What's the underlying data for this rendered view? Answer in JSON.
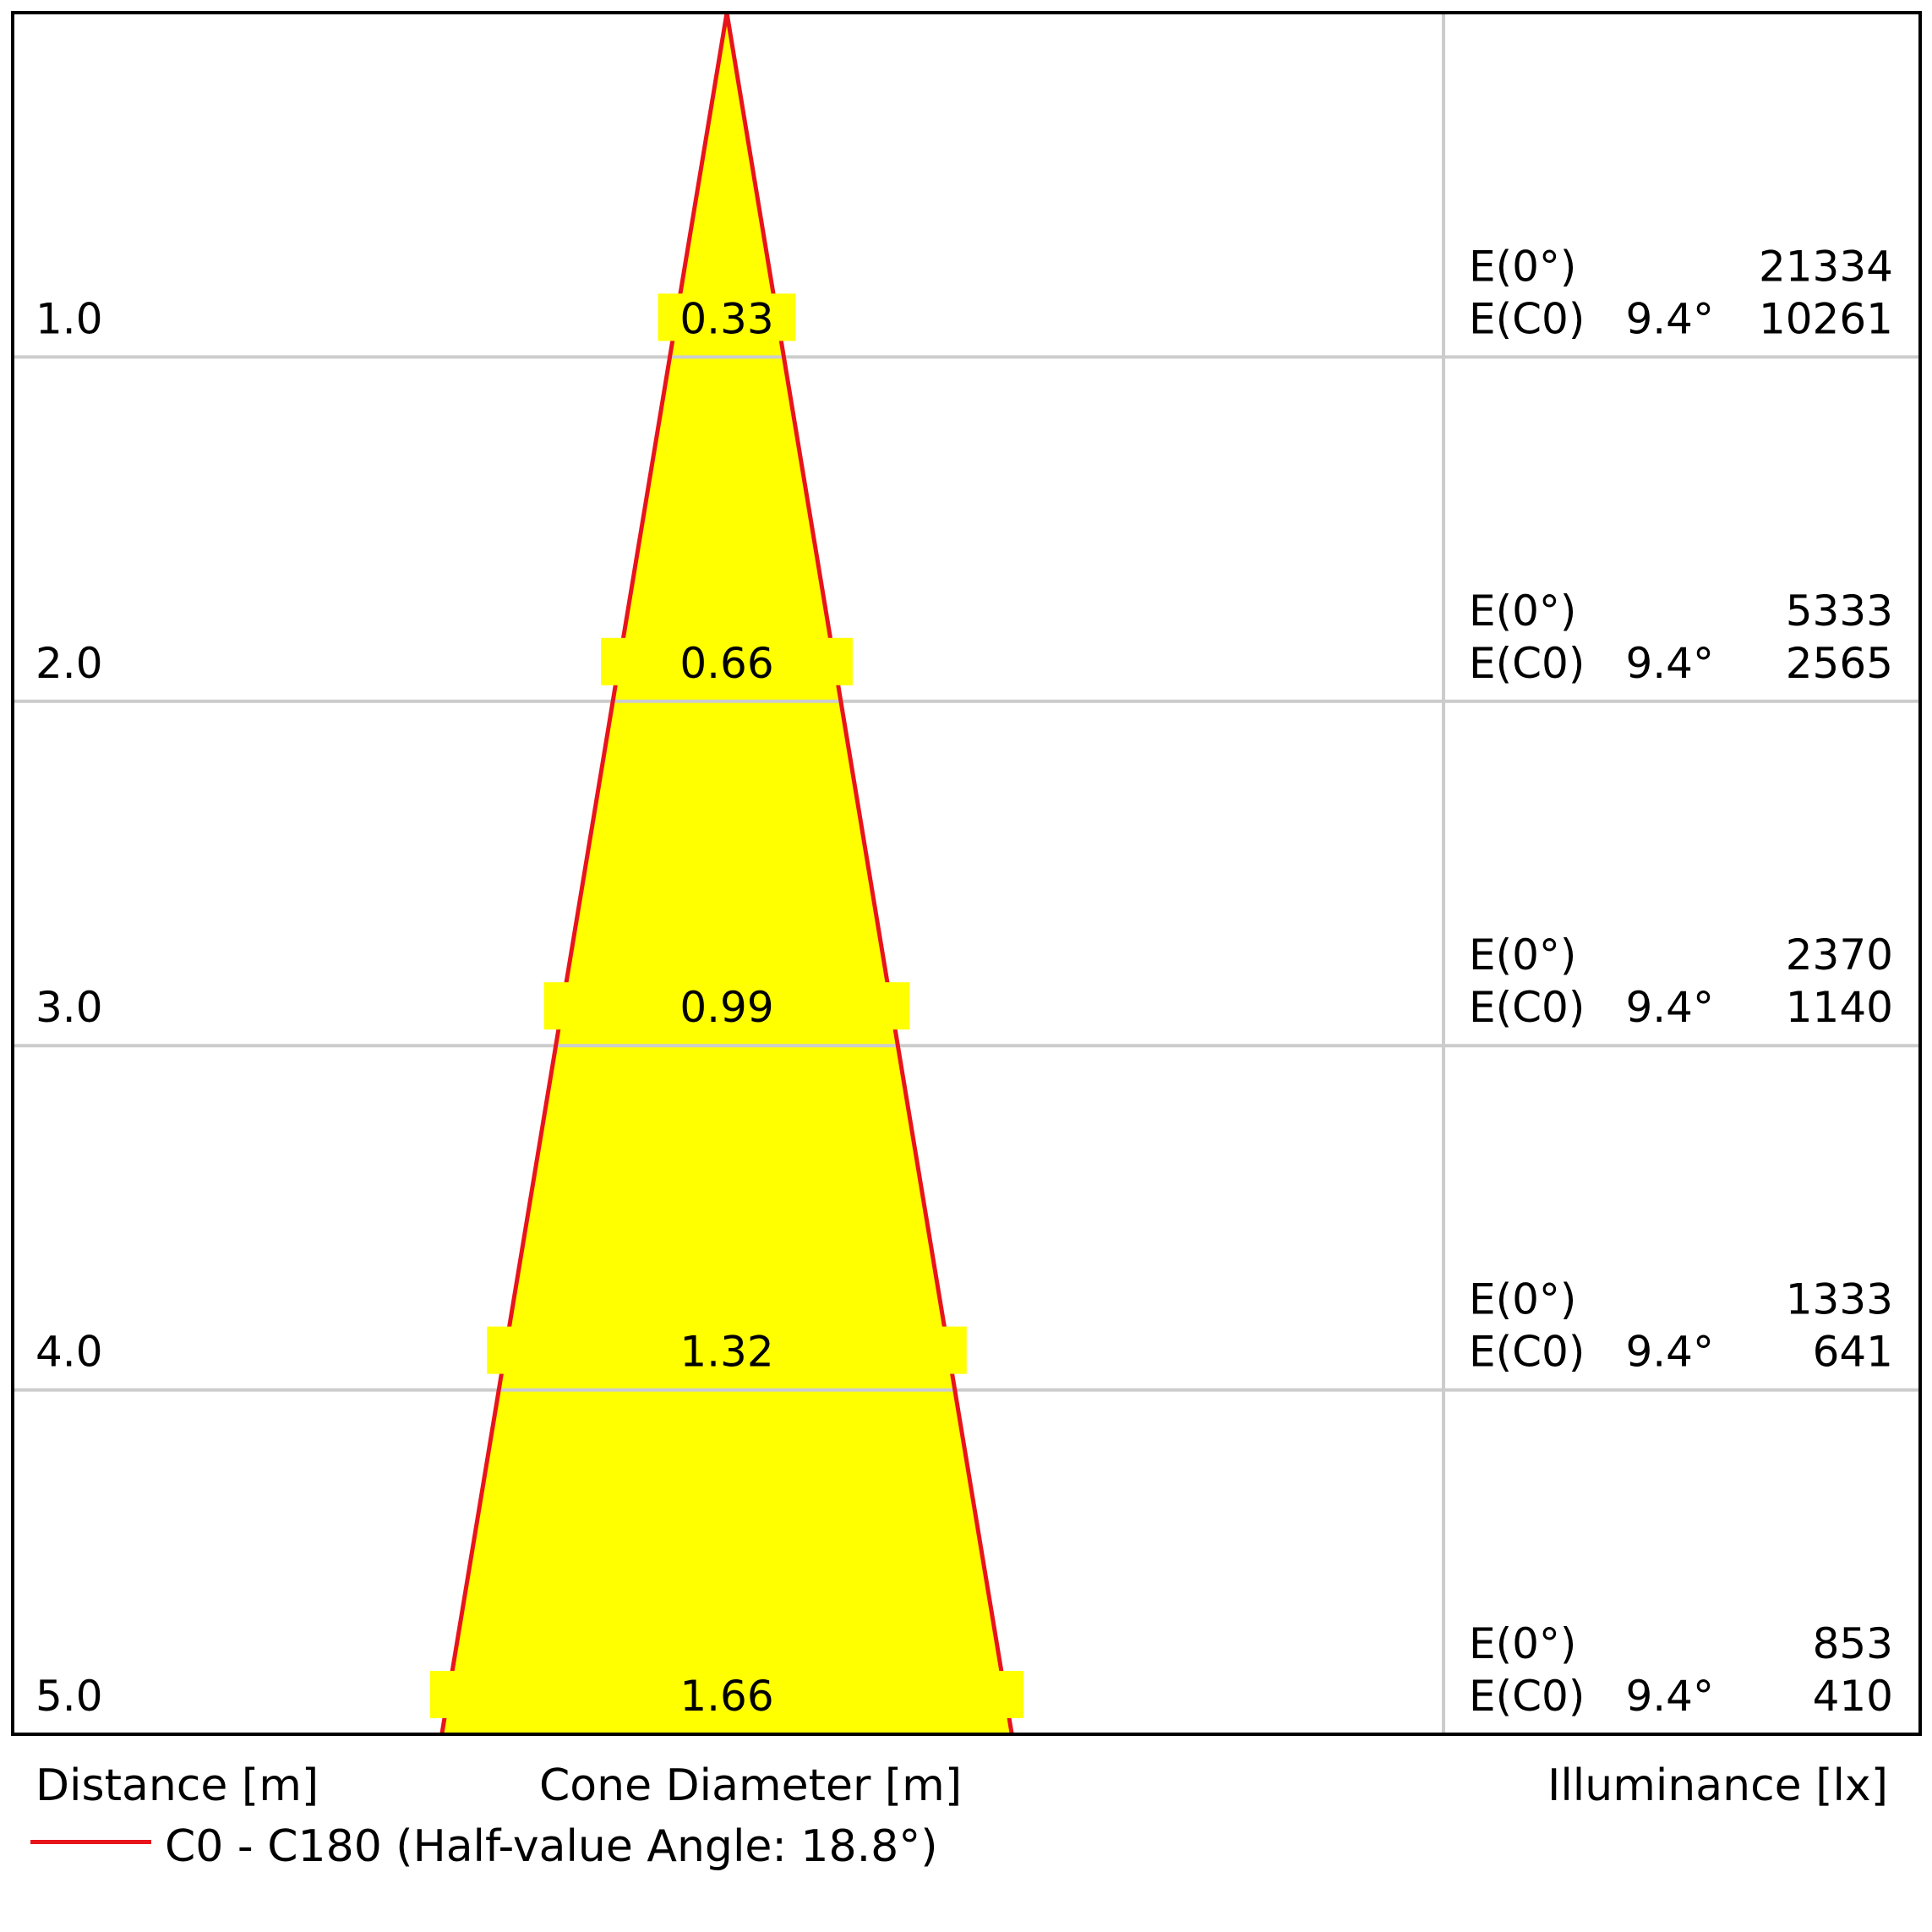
{
  "chart_data": {
    "type": "cone_diagram",
    "xlabel": "Cone Diameter [m]",
    "ylabel": "Distance [m]",
    "right_label": "Illuminance [lx]",
    "legend": [
      {
        "name": "C0 - C180 (Half-value Angle: 18.8°)",
        "color": "#e8141c"
      }
    ],
    "half_value_angle": 18.8,
    "rows": [
      {
        "distance": "1.0",
        "diameter": "0.33",
        "e0_label": "E(0°)",
        "e0": "21334",
        "ec_label": "E(C0)",
        "ec_angle": "9.4°",
        "ec": "10261"
      },
      {
        "distance": "2.0",
        "diameter": "0.66",
        "e0_label": "E(0°)",
        "e0": "5333",
        "ec_label": "E(C0)",
        "ec_angle": "9.4°",
        "ec": "2565"
      },
      {
        "distance": "3.0",
        "diameter": "0.99",
        "e0_label": "E(0°)",
        "e0": "2370",
        "ec_label": "E(C0)",
        "ec_angle": "9.4°",
        "ec": "1140"
      },
      {
        "distance": "4.0",
        "diameter": "1.32",
        "e0_label": "E(0°)",
        "e0": "1333",
        "ec_label": "E(C0)",
        "ec_angle": "9.4°",
        "ec": "641"
      },
      {
        "distance": "5.0",
        "diameter": "1.66",
        "e0_label": "E(0°)",
        "e0": "853",
        "ec_label": "E(C0)",
        "ec_angle": "9.4°",
        "ec": "410"
      }
    ],
    "colors": {
      "cone_fill": "#ffff00",
      "cone_edge": "#e8141c",
      "grid": "#cccccc",
      "frame": "#000000"
    }
  }
}
